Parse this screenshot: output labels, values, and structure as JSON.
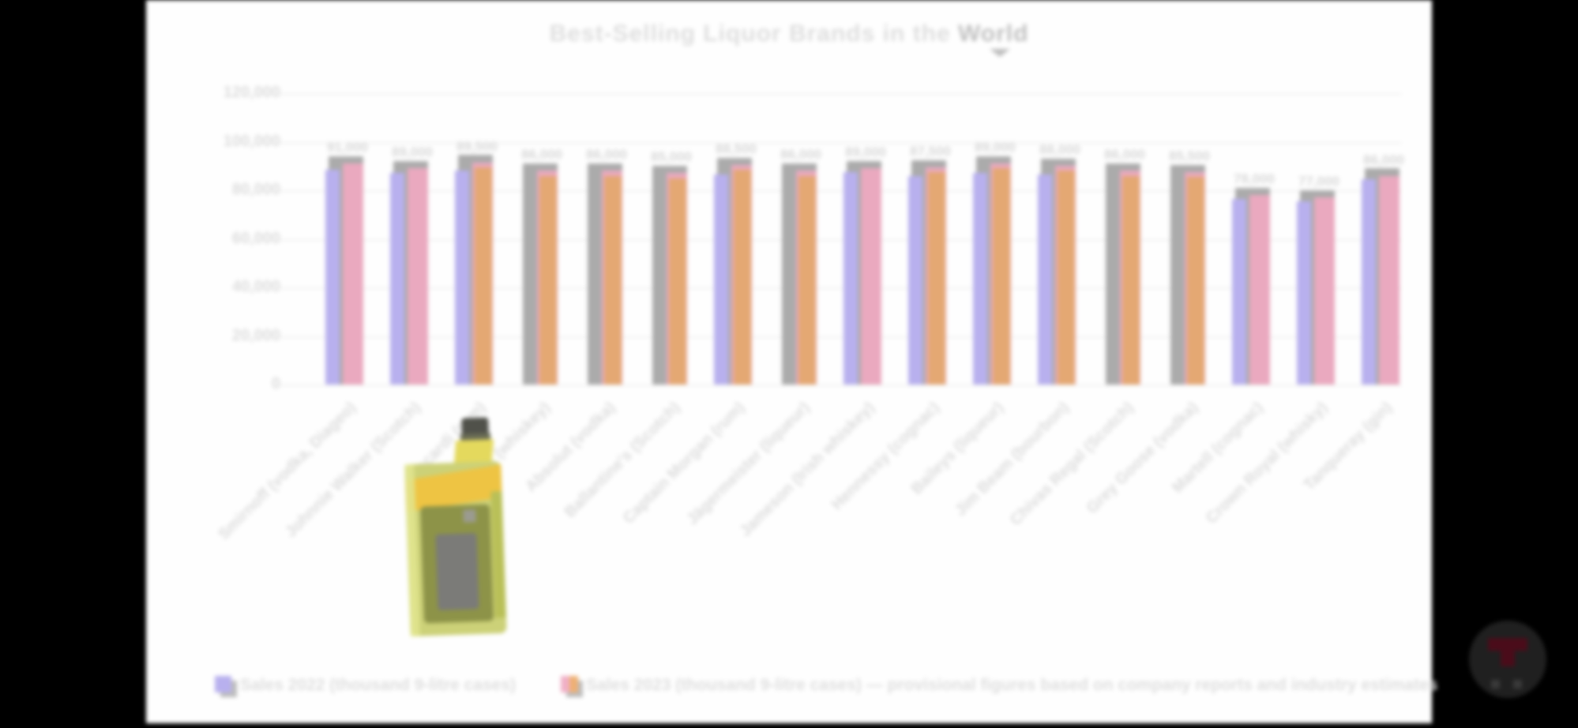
{
  "frame": {
    "background_color": "#000000",
    "card_color": "#fefefe"
  },
  "chart": {
    "title": "Best-Selling Liquor Brands in the ",
    "title_highlight": "World",
    "y_axis_tick_labels": [
      "120,000",
      "100,000",
      "80,000",
      "60,000",
      "40,000",
      "20,000",
      "0"
    ],
    "legend": [
      {
        "colors": [
          "#b8b0ee"
        ],
        "label": "Sales 2022 (thousand 9-litre cases)"
      },
      {
        "colors": [
          "#f0b0c6",
          "#eeb074"
        ],
        "label": "Sales 2023 (thousand 9-litre cases) — provisional figures based on company reports and industry estimates"
      }
    ],
    "colors": {
      "purple": "#b8b0ee",
      "pink": "#eaa9bf",
      "orange": "#e4a873",
      "shadow": "#ababab",
      "text_gray": "#dcdcdc"
    }
  },
  "chart_data": {
    "type": "bar",
    "title": "Best-Selling Liquor Brands in the World",
    "xlabel": "",
    "ylabel": "",
    "ylim": [
      0,
      120000
    ],
    "yticks": [
      0,
      20000,
      40000,
      60000,
      80000,
      100000,
      120000
    ],
    "grid": true,
    "legend_position": "bottom",
    "categories": [
      "Smirnoff (vodka, Diageo)",
      "Johnnie Walker (Scotch)",
      "Bacardi (rum)",
      "Jack Daniel's (whiskey)",
      "Absolut (vodka)",
      "Ballantine's (Scotch)",
      "Captain Morgan (rum)",
      "Jägermeister (liqueur)",
      "Jameson (Irish whiskey)",
      "Hennessy (cognac)",
      "Baileys (liqueur)",
      "Jim Beam (bourbon)",
      "Chivas Regal (Scotch)",
      "Grey Goose (vodka)",
      "Martell (cognac)",
      "Crown Royal (whisky)",
      "Tanqueray (gin)"
    ],
    "series": [
      {
        "name": "Sales 2022 (thousand 9-litre cases)",
        "color": "#b8b0ee",
        "values": [
          88500,
          87000,
          88000,
          null,
          null,
          null,
          86500,
          null,
          87500,
          86000,
          87000,
          86500,
          null,
          null,
          76500,
          75500,
          84500
        ]
      },
      {
        "name": "Sales 2023 – pink",
        "color": "#eaa9bf",
        "values": [
          91000,
          89000,
          91500,
          88000,
          88000,
          87000,
          90500,
          88000,
          89000,
          89500,
          91000,
          90000,
          88000,
          87500,
          78000,
          77000,
          86000
        ]
      },
      {
        "name": "Sales 2023 – orange",
        "color": "#e4a873",
        "values": [
          null,
          null,
          89500,
          86000,
          86000,
          85000,
          88500,
          86000,
          null,
          87500,
          89000,
          88000,
          86000,
          85500,
          null,
          null,
          null
        ]
      }
    ],
    "bar_value_labels": [
      "91,000",
      "89,000",
      "89,500",
      "86,000",
      "86,000",
      "85,000",
      "88,500",
      "86,000",
      "89,000",
      "87,500",
      "89,000",
      "88,000",
      "86,000",
      "85,500",
      "78,000",
      "77,000",
      "86,000"
    ]
  },
  "overlay": {
    "bottle_name": "yellow-liquor-bottle",
    "bottle_colors": {
      "body": "#ccd178",
      "label": "#8d9348",
      "inner_label": "#7b7b78",
      "band": "#eec443",
      "cap": "#50514a"
    }
  },
  "watermark": {
    "name": "channel-logo",
    "circle_color": "#202020",
    "glyph_color": "#4a0c1a"
  }
}
